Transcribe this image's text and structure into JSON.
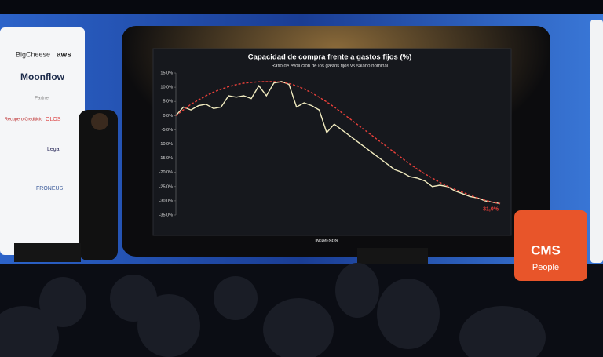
{
  "chart_data": {
    "type": "line",
    "title": "Capacidad de compra frente a gastos fijos (%)",
    "subtitle": "Ratio de evolución de los gastos fijos vs salario nominal",
    "x_label": "INGRESOS",
    "annotation": "-31,0%",
    "categories": [
      null,
      null,
      null,
      null,
      null,
      null,
      null,
      null,
      null,
      null,
      null,
      null,
      null,
      null,
      null,
      null,
      null,
      null,
      null,
      null,
      null,
      null,
      null,
      null,
      null,
      null,
      null,
      null,
      null,
      null,
      null,
      null,
      null,
      null,
      null,
      null,
      null,
      null,
      null,
      null,
      null,
      null,
      null,
      null
    ],
    "series": [
      {
        "color": "#f2ecc0",
        "style": "solid",
        "values": [
          0,
          3,
          2,
          3.5,
          4,
          2.5,
          3,
          7,
          6.5,
          7,
          6,
          10.5,
          7,
          11.5,
          12,
          11,
          3,
          4.5,
          3.5,
          2,
          -6,
          -3,
          -5,
          -7,
          -9,
          -11,
          -13,
          -15,
          -17,
          -19,
          -20,
          -21.5,
          -22,
          -23,
          -25,
          -24.5,
          -25,
          -26.5,
          -27.5,
          -28.5,
          -29,
          -30,
          -30.5,
          -31
        ]
      },
      {
        "color": "#e8403a",
        "style": "dashed",
        "values": [
          0,
          2,
          4,
          5.5,
          7,
          8.3,
          9.3,
          10.2,
          10.9,
          11.4,
          11.7,
          11.9,
          12,
          12,
          11.8,
          11.3,
          10.5,
          9.4,
          8,
          6.5,
          4.8,
          3,
          1,
          -1,
          -3,
          -5,
          -7,
          -9,
          -11,
          -13,
          -15,
          -17,
          -18.8,
          -20.5,
          -22,
          -23.5,
          -24.8,
          -26,
          -27,
          -28,
          -29,
          -29.8,
          -30.5,
          -31
        ]
      }
    ],
    "ylim": [
      -35,
      15
    ],
    "yticks": [
      {
        "value": 15,
        "label": "15,0%"
      },
      {
        "value": 10,
        "label": "10,0%"
      },
      {
        "value": 5,
        "label": "5,0%"
      },
      {
        "value": 0,
        "label": "0,0%"
      },
      {
        "value": -5,
        "label": "-5,0%"
      },
      {
        "value": -10,
        "label": "-10,0%"
      },
      {
        "value": -15,
        "label": "-15,0%"
      },
      {
        "value": -20,
        "label": "-20,0%"
      },
      {
        "value": -25,
        "label": "-25,0%"
      },
      {
        "value": -30,
        "label": "-30,0%"
      },
      {
        "value": -35,
        "label": "-35,0%"
      }
    ],
    "grid": false
  },
  "banner": {
    "sponsors": [
      "BigCheese",
      "aws",
      "Moonflow"
    ],
    "partner_heading": "Partner",
    "partners": [
      "Recupero Crediticio",
      "OLOS",
      "Legal",
      "FRONEUS"
    ]
  },
  "logo": {
    "brand": "CMS",
    "sub": "People"
  }
}
